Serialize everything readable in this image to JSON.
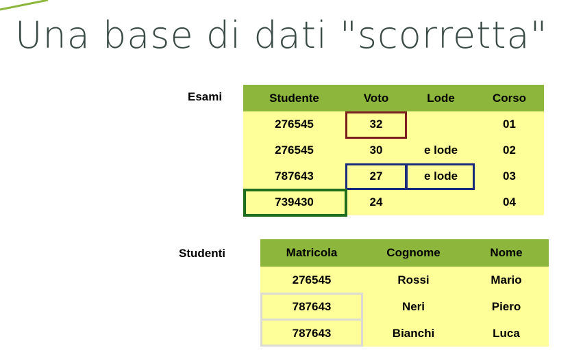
{
  "title": "Una base di dati \"scorretta\"",
  "colors": {
    "header_bg": "#8cb63c",
    "cell_bg": "#ffff99",
    "title_color": "#3a4a46",
    "highlight_red": "#7a1e1e",
    "highlight_blue": "#1a2a7a",
    "highlight_green": "#1e6e1e",
    "highlight_gray": "#dcdcd4"
  },
  "esami": {
    "label": "Esami",
    "headers": [
      "Studente",
      "Voto",
      "Lode",
      "Corso"
    ],
    "rows": [
      [
        "276545",
        "32",
        "",
        "01"
      ],
      [
        "276545",
        "30",
        "e lode",
        "02"
      ],
      [
        "787643",
        "27",
        "e lode",
        "03"
      ],
      [
        "739430",
        "24",
        "",
        "04"
      ]
    ]
  },
  "studenti": {
    "label": "Studenti",
    "headers": [
      "Matricola",
      "Cognome",
      "Nome"
    ],
    "rows": [
      [
        "276545",
        "Rossi",
        "Mario"
      ],
      [
        "787643",
        "Neri",
        "Piero"
      ],
      [
        "787643",
        "Bianchi",
        "Luca"
      ]
    ]
  }
}
